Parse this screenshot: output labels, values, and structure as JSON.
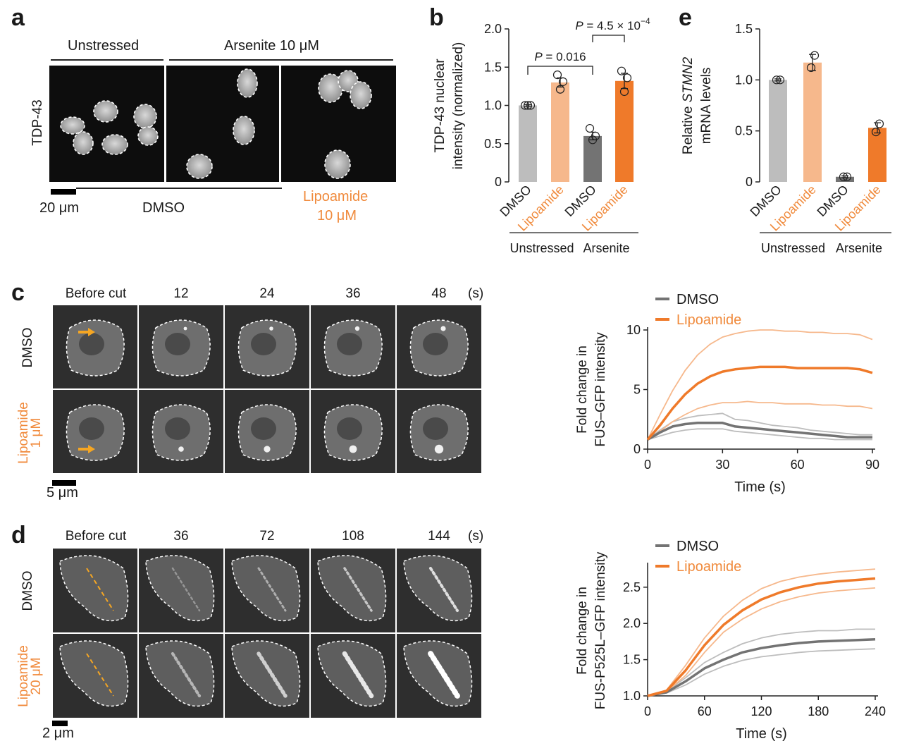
{
  "panel_labels": {
    "a": "a",
    "b": "b",
    "c": "c",
    "d": "d",
    "e": "e"
  },
  "panel_a": {
    "header_unstressed": "Unstressed",
    "header_arsenite": "Arsenite 10 μM",
    "row_label": "TDP-43",
    "scale_bar": "20 μm",
    "bottom_dmso": "DMSO",
    "bottom_lipoamide_line1": "Lipoamide",
    "bottom_lipoamide_line2": "10 μM"
  },
  "panel_c": {
    "time_labels": [
      "Before cut",
      "12",
      "24",
      "36",
      "48"
    ],
    "unit": "(s)",
    "row_dmso": "DMSO",
    "row_lipo_line1": "Lipoamide",
    "row_lipo_line2": "1 μM",
    "scale_bar": "5 μm"
  },
  "panel_d": {
    "time_labels": [
      "Before cut",
      "36",
      "72",
      "108",
      "144"
    ],
    "unit": "(s)",
    "row_dmso": "DMSO",
    "row_lipo_line1": "Lipoamide",
    "row_lipo_line2": "20 μM",
    "scale_bar": "2 μm"
  },
  "colors": {
    "orange": "#f08a3c",
    "orange_dark": "#ef7a2a",
    "orange_light": "#f6b88c",
    "grey_dark": "#737373",
    "grey_light": "#bdbdbd",
    "arrow": "#f5a623"
  },
  "chart_data": [
    {
      "id": "b",
      "type": "bar",
      "ylabel_line1": "TDP-43 nuclear",
      "ylabel_line2": "intensity (normalized)",
      "ylim": [
        0,
        2.0
      ],
      "yticks": [
        "0",
        "0.5",
        "1.0",
        "1.5",
        "2.0"
      ],
      "categories": [
        "DMSO",
        "Lipoamide",
        "DMSO",
        "Lipoamide"
      ],
      "groups": [
        "Unstressed",
        "Arsenite"
      ],
      "values": [
        1.0,
        1.3,
        0.6,
        1.32
      ],
      "errors": [
        0.01,
        0.06,
        0.05,
        0.1
      ],
      "points": [
        [
          1.0,
          1.0,
          1.0
        ],
        [
          1.4,
          1.31,
          1.21
        ],
        [
          0.7,
          0.6,
          0.55
        ],
        [
          1.45,
          1.36,
          1.18
        ]
      ],
      "annotations": [
        {
          "text": "P = 0.016",
          "between": [
            0,
            2
          ]
        },
        {
          "text": "P = 4.5 × 10",
          "sup": "−4",
          "between": [
            2,
            3
          ]
        }
      ]
    },
    {
      "id": "e",
      "type": "bar",
      "ylabel_line1_pre": "Relative ",
      "ylabel_line1_italic": "STMN2",
      "ylabel_line2": "mRNA levels",
      "ylim": [
        0,
        1.5
      ],
      "yticks": [
        "0",
        "0.5",
        "1.0",
        "1.5"
      ],
      "categories": [
        "DMSO",
        "Lipoamide",
        "DMSO",
        "Lipoamide"
      ],
      "groups": [
        "Unstressed",
        "Arsenite"
      ],
      "values": [
        1.0,
        1.17,
        0.05,
        0.53
      ],
      "errors": [
        0.01,
        0.08,
        0.01,
        0.05
      ],
      "points": [
        [
          1.0,
          1.0
        ],
        [
          1.24,
          1.12
        ],
        [
          0.05,
          0.05
        ],
        [
          0.57,
          0.49
        ]
      ]
    },
    {
      "id": "c",
      "type": "line",
      "xlabel": "Time (s)",
      "ylabel_line1": "Fold change in",
      "ylabel_line2": "FUS–GFP intensity",
      "xlim": [
        0,
        90
      ],
      "ylim": [
        0,
        10
      ],
      "xticks": [
        "0",
        "30",
        "60",
        "90"
      ],
      "yticks": [
        "0",
        "5",
        "10"
      ],
      "legend": [
        "DMSO",
        "Lipoamide"
      ],
      "x": [
        0,
        5,
        10,
        15,
        20,
        25,
        30,
        35,
        40,
        45,
        50,
        55,
        60,
        65,
        70,
        75,
        80,
        85,
        90
      ],
      "series": [
        {
          "name": "DMSO",
          "values": [
            0.8,
            1.4,
            1.9,
            2.1,
            2.2,
            2.2,
            2.2,
            1.9,
            1.8,
            1.7,
            1.6,
            1.5,
            1.4,
            1.3,
            1.2,
            1.1,
            1.0,
            1.0,
            1.0
          ]
        },
        {
          "values": [
            0.8,
            1.6,
            2.3,
            2.6,
            2.8,
            2.9,
            3.0,
            2.5,
            2.4,
            2.2,
            2.0,
            1.9,
            1.8,
            1.6,
            1.5,
            1.4,
            1.3,
            1.2,
            1.2
          ]
        },
        {
          "values": [
            0.8,
            1.1,
            1.4,
            1.6,
            1.7,
            1.7,
            1.7,
            1.5,
            1.4,
            1.3,
            1.2,
            1.1,
            1.0,
            0.9,
            0.9,
            0.8,
            0.8,
            0.8,
            0.8
          ]
        },
        {
          "name": "Lipoamide",
          "values": [
            0.8,
            2.0,
            3.4,
            4.6,
            5.5,
            6.1,
            6.5,
            6.7,
            6.8,
            6.9,
            6.9,
            6.9,
            6.8,
            6.8,
            6.8,
            6.8,
            6.8,
            6.7,
            6.4
          ]
        },
        {
          "values": [
            0.8,
            2.9,
            4.9,
            6.6,
            7.9,
            8.8,
            9.4,
            9.7,
            9.9,
            10.0,
            10.0,
            9.9,
            9.9,
            9.8,
            9.8,
            9.7,
            9.7,
            9.6,
            9.2
          ]
        },
        {
          "values": [
            0.8,
            1.5,
            2.3,
            2.9,
            3.4,
            3.7,
            3.9,
            3.9,
            4.0,
            3.9,
            3.9,
            3.8,
            3.8,
            3.8,
            3.7,
            3.7,
            3.6,
            3.6,
            3.4
          ]
        }
      ]
    },
    {
      "id": "d",
      "type": "line",
      "xlabel": "Time (s)",
      "ylabel_line1": "Fold change in",
      "ylabel_line2": "FUS-P525L–GFP intensity",
      "xlim": [
        0,
        240
      ],
      "ylim": [
        1.0,
        2.8
      ],
      "xticks": [
        "0",
        "60",
        "120",
        "180",
        "240"
      ],
      "yticks": [
        "1.0",
        "1.5",
        "2.0",
        "2.5"
      ],
      "legend": [
        "DMSO",
        "Lipoamide"
      ],
      "x": [
        0,
        20,
        40,
        60,
        80,
        100,
        120,
        140,
        160,
        180,
        200,
        220,
        240
      ],
      "series": [
        {
          "name": "DMSO",
          "values": [
            1.0,
            1.05,
            1.2,
            1.38,
            1.5,
            1.6,
            1.66,
            1.7,
            1.73,
            1.75,
            1.76,
            1.77,
            1.78
          ]
        },
        {
          "values": [
            1.0,
            1.06,
            1.25,
            1.46,
            1.6,
            1.72,
            1.8,
            1.85,
            1.88,
            1.9,
            1.9,
            1.92,
            1.92
          ]
        },
        {
          "values": [
            1.0,
            1.04,
            1.15,
            1.3,
            1.41,
            1.49,
            1.54,
            1.57,
            1.6,
            1.62,
            1.63,
            1.64,
            1.65
          ]
        },
        {
          "name": "Lipoamide",
          "values": [
            1.0,
            1.07,
            1.35,
            1.7,
            1.98,
            2.18,
            2.33,
            2.43,
            2.5,
            2.55,
            2.58,
            2.6,
            2.62
          ]
        },
        {
          "values": [
            1.0,
            1.08,
            1.42,
            1.8,
            2.1,
            2.32,
            2.48,
            2.58,
            2.64,
            2.68,
            2.71,
            2.73,
            2.75
          ]
        },
        {
          "values": [
            1.0,
            1.06,
            1.28,
            1.6,
            1.88,
            2.06,
            2.2,
            2.3,
            2.37,
            2.42,
            2.45,
            2.47,
            2.49
          ]
        }
      ]
    }
  ]
}
